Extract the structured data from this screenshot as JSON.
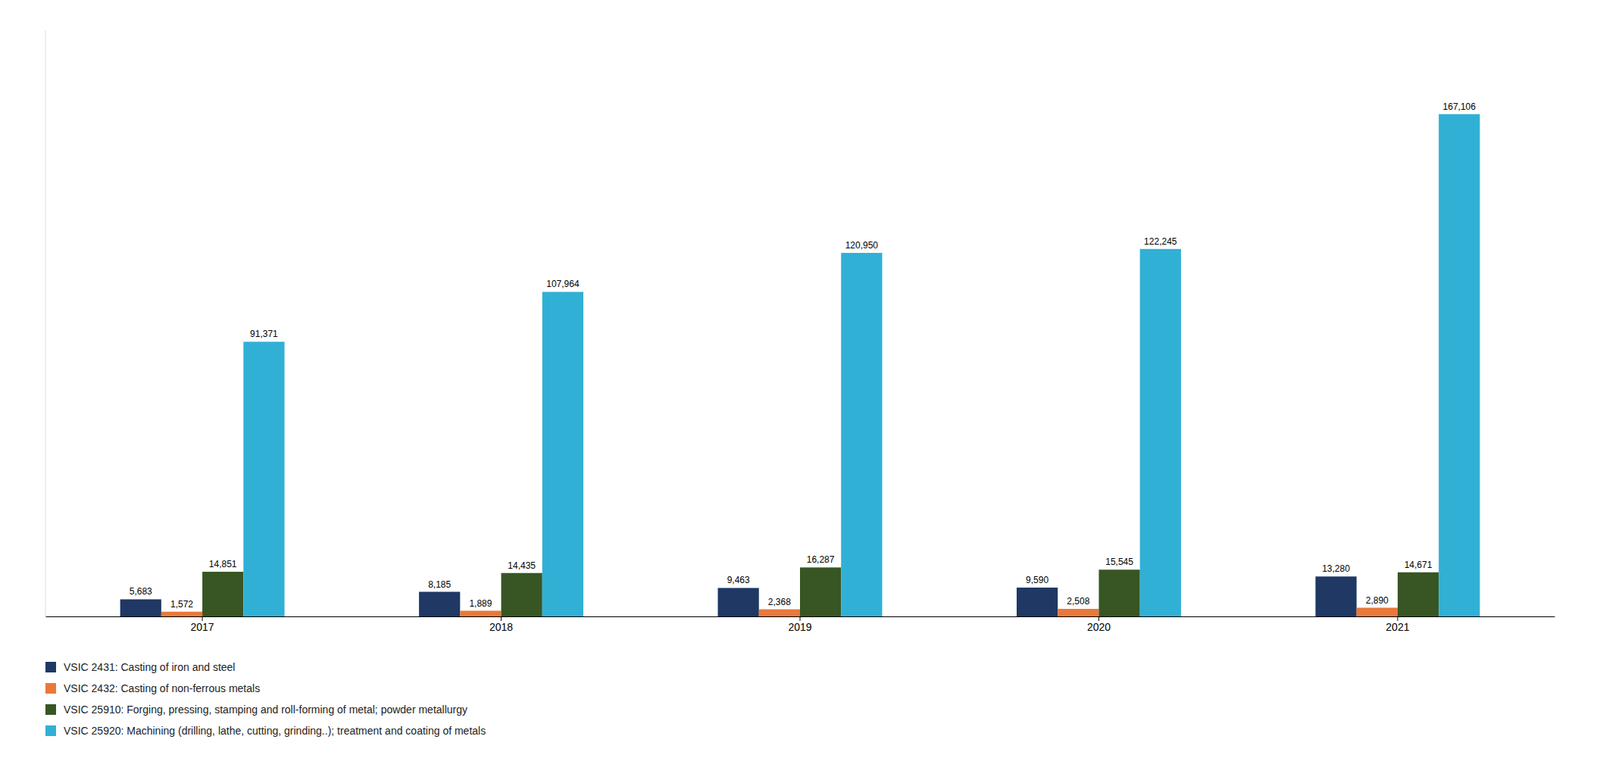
{
  "chart_data": {
    "type": "bar",
    "categories": [
      "2017",
      "2018",
      "2019",
      "2020",
      "2021"
    ],
    "series": [
      {
        "name": "VSIC 2431:  Casting of iron and steel",
        "color": "#1F3864",
        "values": [
          5683,
          8185,
          9463,
          9590,
          13280
        ],
        "value_labels": [
          "5,683",
          "8,185",
          "9,463",
          "9,590",
          "13,280"
        ]
      },
      {
        "name": "VSIC 2432: Casting of non-ferrous metals",
        "color": "#E8793A",
        "values": [
          1572,
          1889,
          2368,
          2508,
          2890
        ],
        "value_labels": [
          "1,572",
          "1,889",
          "2,368",
          "2,508",
          "2,890"
        ]
      },
      {
        "name": "VSIC 25910: Forging, pressing, stamping and roll-forming of metal; powder metallurgy",
        "color": "#375623",
        "values": [
          14851,
          14435,
          16287,
          15545,
          14671
        ],
        "value_labels": [
          "14,851",
          "14,435",
          "16,287",
          "15,545",
          "14,671"
        ]
      },
      {
        "name": "VSIC 25920: Machining (drilling, lathe, cutting, grinding..); treatment and coating of metals",
        "color": "#31B0D5",
        "values": [
          91371,
          107964,
          120950,
          122245,
          167106
        ],
        "value_labels": [
          "91,371",
          "107,964",
          "120,950",
          "122,245",
          "167,106"
        ]
      }
    ],
    "ylim": [
      0,
      195000
    ],
    "grid": false,
    "data_labels": true,
    "tick_labels": "x",
    "legend": "lower left"
  }
}
